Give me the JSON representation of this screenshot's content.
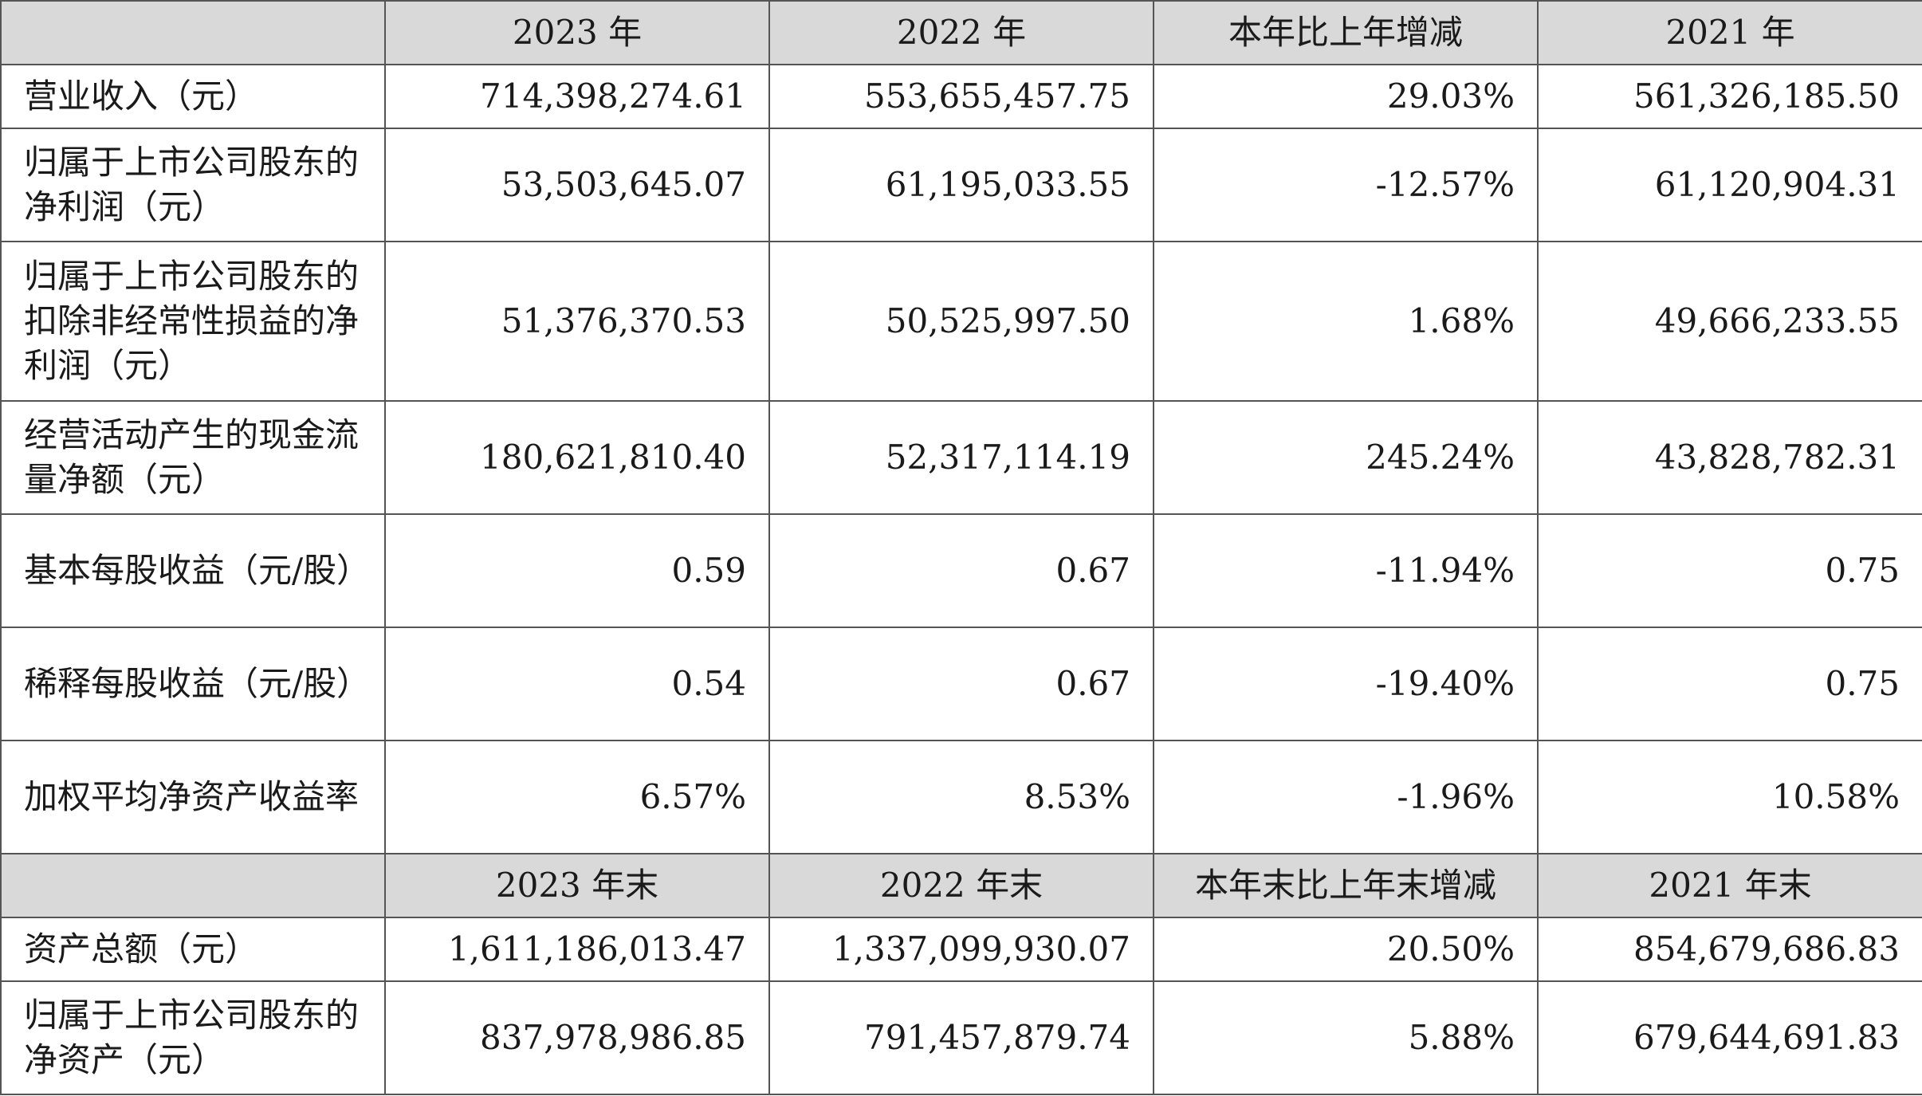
{
  "table": {
    "header1": [
      "",
      "2023 年",
      "2022 年",
      "本年比上年增减",
      "2021 年"
    ],
    "rows1": [
      {
        "label": "营业收入（元）",
        "values": [
          "714,398,274.61",
          "553,655,457.75",
          "29.03%",
          "561,326,185.50"
        ]
      },
      {
        "label": "归属于上市公司股东的净利润（元）",
        "values": [
          "53,503,645.07",
          "61,195,033.55",
          "-12.57%",
          "61,120,904.31"
        ]
      },
      {
        "label": "归属于上市公司股东的扣除非经常性损益的净利润（元）",
        "values": [
          "51,376,370.53",
          "50,525,997.50",
          "1.68%",
          "49,666,233.55"
        ]
      },
      {
        "label": "经营活动产生的现金流量净额（元）",
        "values": [
          "180,621,810.40",
          "52,317,114.19",
          "245.24%",
          "43,828,782.31"
        ]
      },
      {
        "label": "基本每股收益（元/股）",
        "values": [
          "0.59",
          "0.67",
          "-11.94%",
          "0.75"
        ]
      },
      {
        "label": "稀释每股收益（元/股）",
        "values": [
          "0.54",
          "0.67",
          "-19.40%",
          "0.75"
        ]
      },
      {
        "label": "加权平均净资产收益率",
        "values": [
          "6.57%",
          "8.53%",
          "-1.96%",
          "10.58%"
        ]
      }
    ],
    "header2": [
      "",
      "2023 年末",
      "2022 年末",
      "本年末比上年末增减",
      "2021 年末"
    ],
    "rows2": [
      {
        "label": "资产总额（元）",
        "values": [
          "1,611,186,013.47",
          "1,337,099,930.07",
          "20.50%",
          "854,679,686.83"
        ]
      },
      {
        "label": "归属于上市公司股东的净资产（元）",
        "values": [
          "837,978,986.85",
          "791,457,879.74",
          "5.88%",
          "679,644,691.83"
        ]
      }
    ]
  }
}
